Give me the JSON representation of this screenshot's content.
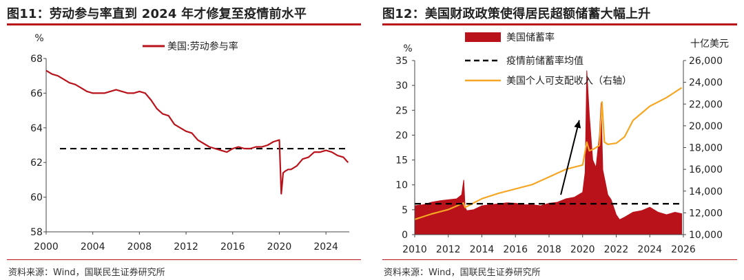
{
  "colors": {
    "accent_red": "#b9121b",
    "orange": "#f5a623",
    "black": "#000000"
  },
  "left": {
    "title": "图11：劳动参与率直到 2024 年才修复至疫情前水平",
    "source": "资料来源：Wind，国联民生证券研究所"
  },
  "right": {
    "title": "图12：美国财政政策使得居民超额储蓄大幅上升",
    "source": "资料来源：Wind，国联民生证券研究所"
  },
  "chart_data": [
    {
      "type": "line",
      "ylabel": "%",
      "ylim": [
        58,
        68
      ],
      "xlim": [
        2000,
        2026
      ],
      "xticks": [
        "2000",
        "2004",
        "2008",
        "2012",
        "2016",
        "2020",
        "2024"
      ],
      "yticks": [
        "58",
        "60",
        "62",
        "64",
        "66",
        "68"
      ],
      "reference_line": {
        "y": 62.8,
        "style": "dashed"
      },
      "legend_position": "top",
      "grid": false,
      "series": [
        {
          "name": "美国:劳动参与率",
          "color": "#b9121b",
          "x": [
            2000,
            2000.5,
            2001,
            2001.5,
            2002,
            2002.5,
            2003,
            2003.5,
            2004,
            2004.5,
            2005,
            2005.5,
            2006,
            2006.5,
            2007,
            2007.5,
            2008,
            2008.5,
            2009,
            2009.5,
            2010,
            2010.5,
            2011,
            2011.5,
            2012,
            2012.5,
            2013,
            2013.5,
            2014,
            2014.5,
            2015,
            2015.5,
            2016,
            2016.5,
            2017,
            2017.5,
            2018,
            2018.5,
            2019,
            2019.5,
            2020.0,
            2020.17,
            2020.25,
            2020.33,
            2020.5,
            2020.75,
            2021,
            2021.5,
            2022,
            2022.5,
            2023,
            2023.5,
            2024,
            2024.5,
            2025,
            2025.5,
            2025.9
          ],
          "y": [
            67.3,
            67.1,
            67.0,
            66.8,
            66.6,
            66.5,
            66.3,
            66.1,
            66.0,
            66.0,
            66.0,
            66.1,
            66.2,
            66.1,
            66.0,
            66.0,
            66.1,
            66.0,
            65.6,
            65.1,
            64.8,
            64.7,
            64.2,
            64.0,
            63.8,
            63.7,
            63.3,
            63.1,
            62.9,
            62.8,
            62.7,
            62.6,
            62.8,
            62.9,
            62.8,
            62.8,
            62.9,
            62.9,
            63.0,
            63.2,
            63.3,
            60.2,
            60.8,
            61.4,
            61.5,
            61.6,
            61.6,
            61.8,
            62.2,
            62.3,
            62.6,
            62.6,
            62.7,
            62.6,
            62.4,
            62.3,
            62.0
          ]
        }
      ]
    },
    {
      "type": "area",
      "ylabel": "%",
      "y2label": "十亿美元",
      "ylim": [
        0,
        35
      ],
      "y2lim": [
        10000,
        26000
      ],
      "xlim": [
        2010,
        2026
      ],
      "xticks": [
        "2010",
        "2012",
        "2014",
        "2016",
        "2018",
        "2020",
        "2022",
        "2024",
        "2026"
      ],
      "yticks": [
        "0",
        "5",
        "10",
        "15",
        "20",
        "25",
        "30",
        "35"
      ],
      "y2ticks": [
        "10,000",
        "12,000",
        "14,000",
        "16,000",
        "18,000",
        "20,000",
        "22,000",
        "24,000",
        "26,000"
      ],
      "legend_position": "top-left",
      "grid": false,
      "annotations": [
        {
          "type": "arrow",
          "from": [
            2018.7,
            8
          ],
          "to": [
            2019.8,
            23
          ]
        }
      ],
      "series": [
        {
          "name": "美国储蓄率",
          "color": "#b9121b",
          "axis": "left",
          "x": [
            2010,
            2010.5,
            2011,
            2011.5,
            2012,
            2012.5,
            2012.8,
            2012.92,
            2013.0,
            2013.1,
            2013.5,
            2014,
            2014.5,
            2015,
            2015.5,
            2016,
            2016.5,
            2017,
            2017.5,
            2018,
            2018.5,
            2019,
            2019.5,
            2020.0,
            2020.15,
            2020.25,
            2020.4,
            2020.6,
            2020.8,
            2021.0,
            2021.1,
            2021.2,
            2021.35,
            2021.5,
            2021.7,
            2022,
            2022.2,
            2022.5,
            2023,
            2023.5,
            2024,
            2024.5,
            2025,
            2025.5,
            2025.9
          ],
          "y": [
            5.8,
            6.0,
            6.5,
            6.8,
            7.0,
            7.2,
            8.0,
            11.0,
            5.5,
            4.8,
            5.0,
            5.8,
            6.0,
            6.2,
            6.4,
            6.3,
            6.0,
            6.0,
            5.8,
            6.3,
            6.5,
            7.2,
            7.5,
            8.5,
            12.5,
            33.0,
            24.0,
            15.0,
            13.5,
            20.0,
            26.5,
            13.0,
            10.5,
            8.0,
            7.0,
            4.0,
            3.0,
            3.5,
            4.5,
            4.8,
            5.5,
            4.5,
            4.0,
            4.5,
            4.2
          ]
        },
        {
          "name": "疫情前储蓄率均值",
          "color": "#000000",
          "axis": "left",
          "style": "dashed",
          "x": [
            2010,
            2026
          ],
          "y": [
            6.2,
            6.2
          ]
        },
        {
          "name": "美国个人可支配收入（右轴）",
          "color": "#f5a623",
          "axis": "right",
          "x": [
            2010,
            2011,
            2012,
            2012.9,
            2013.0,
            2014,
            2015,
            2016,
            2017,
            2018,
            2019,
            2020.0,
            2020.25,
            2020.4,
            2020.7,
            2021.0,
            2021.15,
            2021.3,
            2021.5,
            2022,
            2022.5,
            2023,
            2024,
            2025,
            2025.9
          ],
          "y": [
            11400,
            11900,
            12300,
            12900,
            12500,
            13300,
            13800,
            14200,
            14600,
            15300,
            16000,
            16400,
            18500,
            17700,
            17900,
            18200,
            22200,
            18500,
            18300,
            18400,
            19000,
            20500,
            21800,
            22600,
            23500
          ]
        }
      ]
    }
  ]
}
